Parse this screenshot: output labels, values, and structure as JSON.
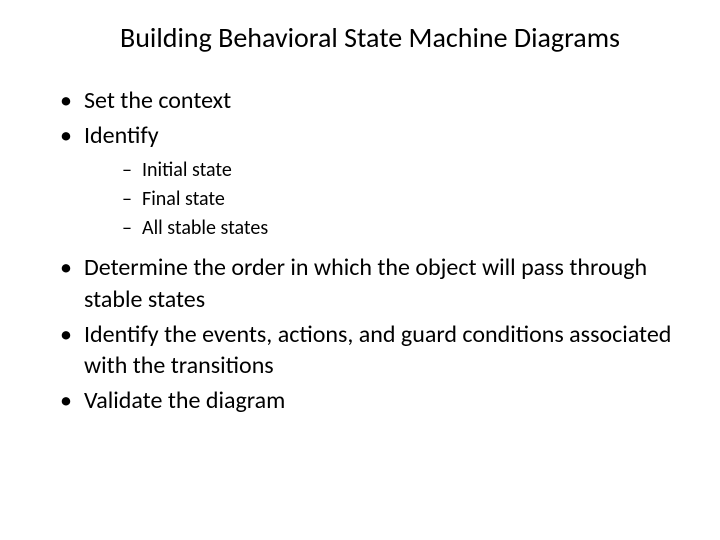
{
  "slide": {
    "title": "Building Behavioral State Machine Diagrams",
    "bullets": [
      {
        "text": "Set the context"
      },
      {
        "text": "Identify",
        "subs": [
          "Initial state",
          "Final state",
          "All stable states"
        ]
      },
      {
        "text": "Determine the order in which the object will pass through stable states"
      },
      {
        "text": "Identify the events, actions, and guard conditions associated with the transitions"
      },
      {
        "text": "Validate the diagram"
      }
    ]
  },
  "style": {
    "background_color": "#ffffff",
    "text_color": "#000000",
    "title_fontsize": 28,
    "main_fontsize": 24,
    "sub_fontsize": 20,
    "font_family": "Calibri"
  }
}
